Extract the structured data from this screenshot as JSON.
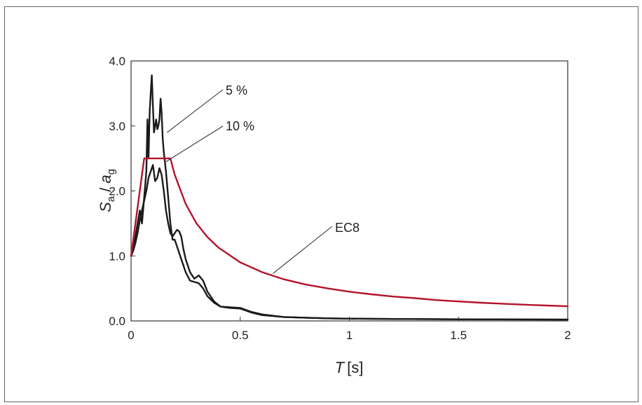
{
  "chart_data": {
    "type": "line",
    "xlabel": {
      "symbol": "T",
      "unit": "[s]"
    },
    "ylabel": {
      "num": "S",
      "num_sub": "a",
      "sep": " / ",
      "den": "a",
      "den_sub": "g"
    },
    "xlim": [
      0,
      2
    ],
    "ylim": [
      0,
      4
    ],
    "x_ticks": [
      {
        "v": 0,
        "label": "0"
      },
      {
        "v": 0.5,
        "label": "0.5"
      },
      {
        "v": 1,
        "label": "1"
      },
      {
        "v": 1.5,
        "label": "1.5"
      },
      {
        "v": 2,
        "label": "2"
      }
    ],
    "y_ticks": [
      {
        "v": 0,
        "label": "0.0"
      },
      {
        "v": 1,
        "label": "1.0"
      },
      {
        "v": 2,
        "label": "2.0"
      },
      {
        "v": 3,
        "label": "3.0"
      },
      {
        "v": 4,
        "label": "4.0"
      }
    ],
    "grid": false,
    "series": [
      {
        "name": "5 %",
        "color": "#1a1a1a",
        "x": [
          0,
          0.01,
          0.02,
          0.03,
          0.04,
          0.05,
          0.06,
          0.07,
          0.075,
          0.08,
          0.085,
          0.09,
          0.095,
          0.1,
          0.105,
          0.11,
          0.115,
          0.12,
          0.125,
          0.13,
          0.135,
          0.14,
          0.145,
          0.15,
          0.16,
          0.17,
          0.18,
          0.19,
          0.2,
          0.21,
          0.22,
          0.23,
          0.24,
          0.25,
          0.27,
          0.29,
          0.31,
          0.33,
          0.35,
          0.38,
          0.41,
          0.45,
          0.5,
          0.55,
          0.6,
          0.7,
          0.8,
          0.9,
          1.0,
          1.2,
          1.5,
          2.0
        ],
        "y": [
          1.0,
          1.1,
          1.3,
          1.5,
          1.7,
          1.5,
          1.9,
          2.3,
          3.1,
          2.5,
          3.2,
          3.5,
          3.78,
          3.3,
          2.9,
          3.0,
          3.1,
          2.95,
          3.0,
          3.1,
          3.42,
          3.2,
          2.8,
          2.6,
          2.3,
          1.9,
          1.5,
          1.25,
          1.25,
          1.15,
          1.05,
          0.95,
          0.85,
          0.75,
          0.62,
          0.6,
          0.58,
          0.5,
          0.38,
          0.28,
          0.22,
          0.21,
          0.2,
          0.14,
          0.1,
          0.06,
          0.05,
          0.04,
          0.035,
          0.03,
          0.025,
          0.02
        ]
      },
      {
        "name": "10 %",
        "color": "#1a1a1a",
        "x": [
          0,
          0.01,
          0.02,
          0.03,
          0.04,
          0.05,
          0.06,
          0.07,
          0.08,
          0.09,
          0.1,
          0.11,
          0.12,
          0.13,
          0.14,
          0.15,
          0.16,
          0.17,
          0.18,
          0.19,
          0.2,
          0.21,
          0.22,
          0.23,
          0.24,
          0.25,
          0.27,
          0.29,
          0.31,
          0.33,
          0.35,
          0.38,
          0.41,
          0.45,
          0.5,
          0.55,
          0.6,
          0.7,
          0.8,
          0.9,
          1.0,
          1.2,
          1.5,
          2.0
        ],
        "y": [
          1.0,
          1.08,
          1.2,
          1.35,
          1.55,
          1.7,
          1.85,
          2.0,
          2.2,
          2.3,
          2.4,
          2.15,
          2.2,
          2.35,
          2.25,
          2.0,
          1.7,
          1.5,
          1.35,
          1.3,
          1.35,
          1.4,
          1.38,
          1.3,
          1.1,
          0.95,
          0.75,
          0.65,
          0.7,
          0.62,
          0.45,
          0.3,
          0.22,
          0.2,
          0.19,
          0.13,
          0.09,
          0.06,
          0.05,
          0.04,
          0.035,
          0.03,
          0.025,
          0.02
        ]
      },
      {
        "name": "EC8",
        "color": "#b5132b",
        "x": [
          0,
          0.06,
          0.18,
          0.2,
          0.25,
          0.3,
          0.35,
          0.4,
          0.5,
          0.6,
          0.7,
          0.8,
          0.9,
          1.0,
          1.1,
          1.2,
          1.3,
          1.4,
          1.5,
          1.6,
          1.7,
          1.8,
          1.9,
          2.0
        ],
        "y": [
          1.0,
          2.5,
          2.5,
          2.25,
          1.8,
          1.5,
          1.29,
          1.13,
          0.9,
          0.75,
          0.64,
          0.56,
          0.5,
          0.45,
          0.41,
          0.375,
          0.35,
          0.32,
          0.3,
          0.28,
          0.265,
          0.25,
          0.237,
          0.225
        ]
      }
    ],
    "annotations": [
      {
        "text": "5 %",
        "series": "5 %",
        "x": 0.165,
        "y": 2.9
      },
      {
        "text": "10 %",
        "series": "10 %",
        "x": 0.16,
        "y": 2.45
      },
      {
        "text": "EC8",
        "series": "EC8",
        "x": 0.65,
        "y": 0.73
      }
    ]
  }
}
